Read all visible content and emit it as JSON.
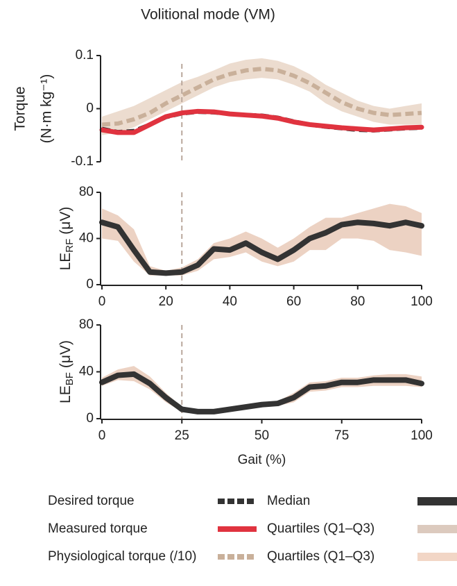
{
  "chart_data": [
    {
      "type": "line",
      "title": "Volitional mode (VM)",
      "ylabel": [
        "Torque",
        "(N·m kg⁻¹)"
      ],
      "x": [
        0,
        5,
        10,
        15,
        20,
        25,
        30,
        35,
        40,
        45,
        50,
        55,
        60,
        65,
        70,
        75,
        80,
        85,
        90,
        95,
        100
      ],
      "xlim": [
        0,
        100
      ],
      "ylim": [
        -0.1,
        0.1
      ],
      "yticks": [
        -0.1,
        0,
        0.1
      ],
      "vline": 25,
      "bands": [
        {
          "color": "#ecdccf",
          "low": [
            -0.05,
            -0.045,
            -0.035,
            -0.02,
            -0.005,
            0.01,
            0.025,
            0.04,
            0.05,
            0.055,
            0.058,
            0.055,
            0.045,
            0.032,
            0.01,
            -0.005,
            -0.015,
            -0.025,
            -0.03,
            -0.03,
            -0.03
          ],
          "high": [
            -0.015,
            -0.005,
            0.005,
            0.02,
            0.035,
            0.05,
            0.06,
            0.072,
            0.085,
            0.092,
            0.095,
            0.09,
            0.08,
            0.065,
            0.045,
            0.03,
            0.015,
            0.005,
            0,
            0.005,
            0.01
          ]
        }
      ],
      "series": [
        {
          "color": "#c9b09a",
          "dash": true,
          "width": 6,
          "values": [
            -0.03,
            -0.028,
            -0.02,
            -0.008,
            0.01,
            0.025,
            0.04,
            0.055,
            0.065,
            0.072,
            0.075,
            0.072,
            0.062,
            0.048,
            0.03,
            0.012,
            0,
            -0.008,
            -0.012,
            -0.01,
            -0.008
          ]
        },
        {
          "color": "#333333",
          "dash": true,
          "width": 6,
          "values": [
            -0.038,
            -0.044,
            -0.042,
            -0.03,
            -0.016,
            -0.009,
            -0.006,
            -0.007,
            -0.01,
            -0.012,
            -0.013,
            -0.017,
            -0.024,
            -0.03,
            -0.034,
            -0.037,
            -0.04,
            -0.041,
            -0.039,
            -0.037,
            -0.036
          ]
        },
        {
          "color": "#e0333f",
          "dash": false,
          "width": 7,
          "values": [
            -0.04,
            -0.045,
            -0.045,
            -0.03,
            -0.015,
            -0.008,
            -0.005,
            -0.006,
            -0.01,
            -0.012,
            -0.014,
            -0.018,
            -0.025,
            -0.03,
            -0.033,
            -0.036,
            -0.038,
            -0.04,
            -0.038,
            -0.036,
            -0.035
          ]
        }
      ]
    },
    {
      "type": "line",
      "ylabel": [
        "LE",
        "RF",
        "(μV)"
      ],
      "x": [
        0,
        5,
        10,
        15,
        20,
        25,
        30,
        35,
        40,
        45,
        50,
        55,
        60,
        65,
        70,
        75,
        80,
        85,
        90,
        95,
        100
      ],
      "xlim": [
        0,
        100
      ],
      "xticks": [
        0,
        20,
        40,
        60,
        80,
        100
      ],
      "ylim": [
        0,
        80
      ],
      "yticks": [
        0,
        40,
        80
      ],
      "vline": 25,
      "bands": [
        {
          "color": "#ecd2c3",
          "low": [
            40,
            38,
            20,
            8,
            8,
            8,
            12,
            22,
            24,
            28,
            20,
            16,
            20,
            30,
            30,
            40,
            40,
            38,
            30,
            28,
            25
          ],
          "high": [
            66,
            60,
            48,
            16,
            12,
            15,
            22,
            36,
            40,
            46,
            40,
            32,
            40,
            50,
            58,
            58,
            62,
            66,
            70,
            68,
            62
          ]
        }
      ],
      "series": [
        {
          "color": "#333333",
          "dash": false,
          "width": 8,
          "values": [
            54,
            50,
            30,
            11,
            10,
            11,
            17,
            31,
            30,
            36,
            28,
            22,
            30,
            40,
            45,
            52,
            54,
            53,
            51,
            54,
            51
          ]
        }
      ]
    },
    {
      "type": "line",
      "ylabel": [
        "LE",
        "BF",
        "(μV)"
      ],
      "xlabel": "Gait (%)",
      "x": [
        0,
        5,
        10,
        15,
        20,
        25,
        30,
        35,
        40,
        45,
        50,
        55,
        60,
        65,
        70,
        75,
        80,
        85,
        90,
        95,
        100
      ],
      "xlim": [
        0,
        100
      ],
      "xticks": [
        0,
        25,
        50,
        75,
        100
      ],
      "ylim": [
        0,
        80
      ],
      "yticks": [
        0,
        40,
        80
      ],
      "vline": 25,
      "bands": [
        {
          "color": "#ecd2c3",
          "low": [
            28,
            33,
            32,
            25,
            14,
            6,
            5,
            5,
            6,
            8,
            10,
            11,
            14,
            23,
            24,
            27,
            27,
            28,
            28,
            28,
            27
          ],
          "high": [
            35,
            42,
            45,
            36,
            22,
            10,
            7,
            7,
            10,
            12,
            14,
            15,
            22,
            31,
            32,
            35,
            35,
            37,
            38,
            38,
            36
          ]
        }
      ],
      "series": [
        {
          "color": "#333333",
          "dash": false,
          "width": 8,
          "values": [
            31,
            37,
            38,
            30,
            18,
            8,
            6,
            6,
            8,
            10,
            12,
            13,
            18,
            27,
            28,
            31,
            31,
            33,
            33,
            33,
            30
          ]
        }
      ]
    }
  ],
  "legend": [
    {
      "label": "Desired torque",
      "color": "#333333",
      "dash": true,
      "width": 8
    },
    {
      "label": "Measured torque",
      "color": "#e0333f",
      "dash": false,
      "width": 8
    },
    {
      "label": "Physiological torque (/10)",
      "color": "#c9b09a",
      "dash": true,
      "width": 8
    },
    {
      "label": "Median",
      "color": "#333333",
      "dash": false,
      "width": 12
    },
    {
      "label": "Quartiles (Q1–Q3)",
      "color": "#dccabe",
      "dash": false,
      "width": 12
    },
    {
      "label": "Quartiles (Q1–Q3)",
      "color": "#f2d6c6",
      "dash": false,
      "width": 12
    }
  ]
}
